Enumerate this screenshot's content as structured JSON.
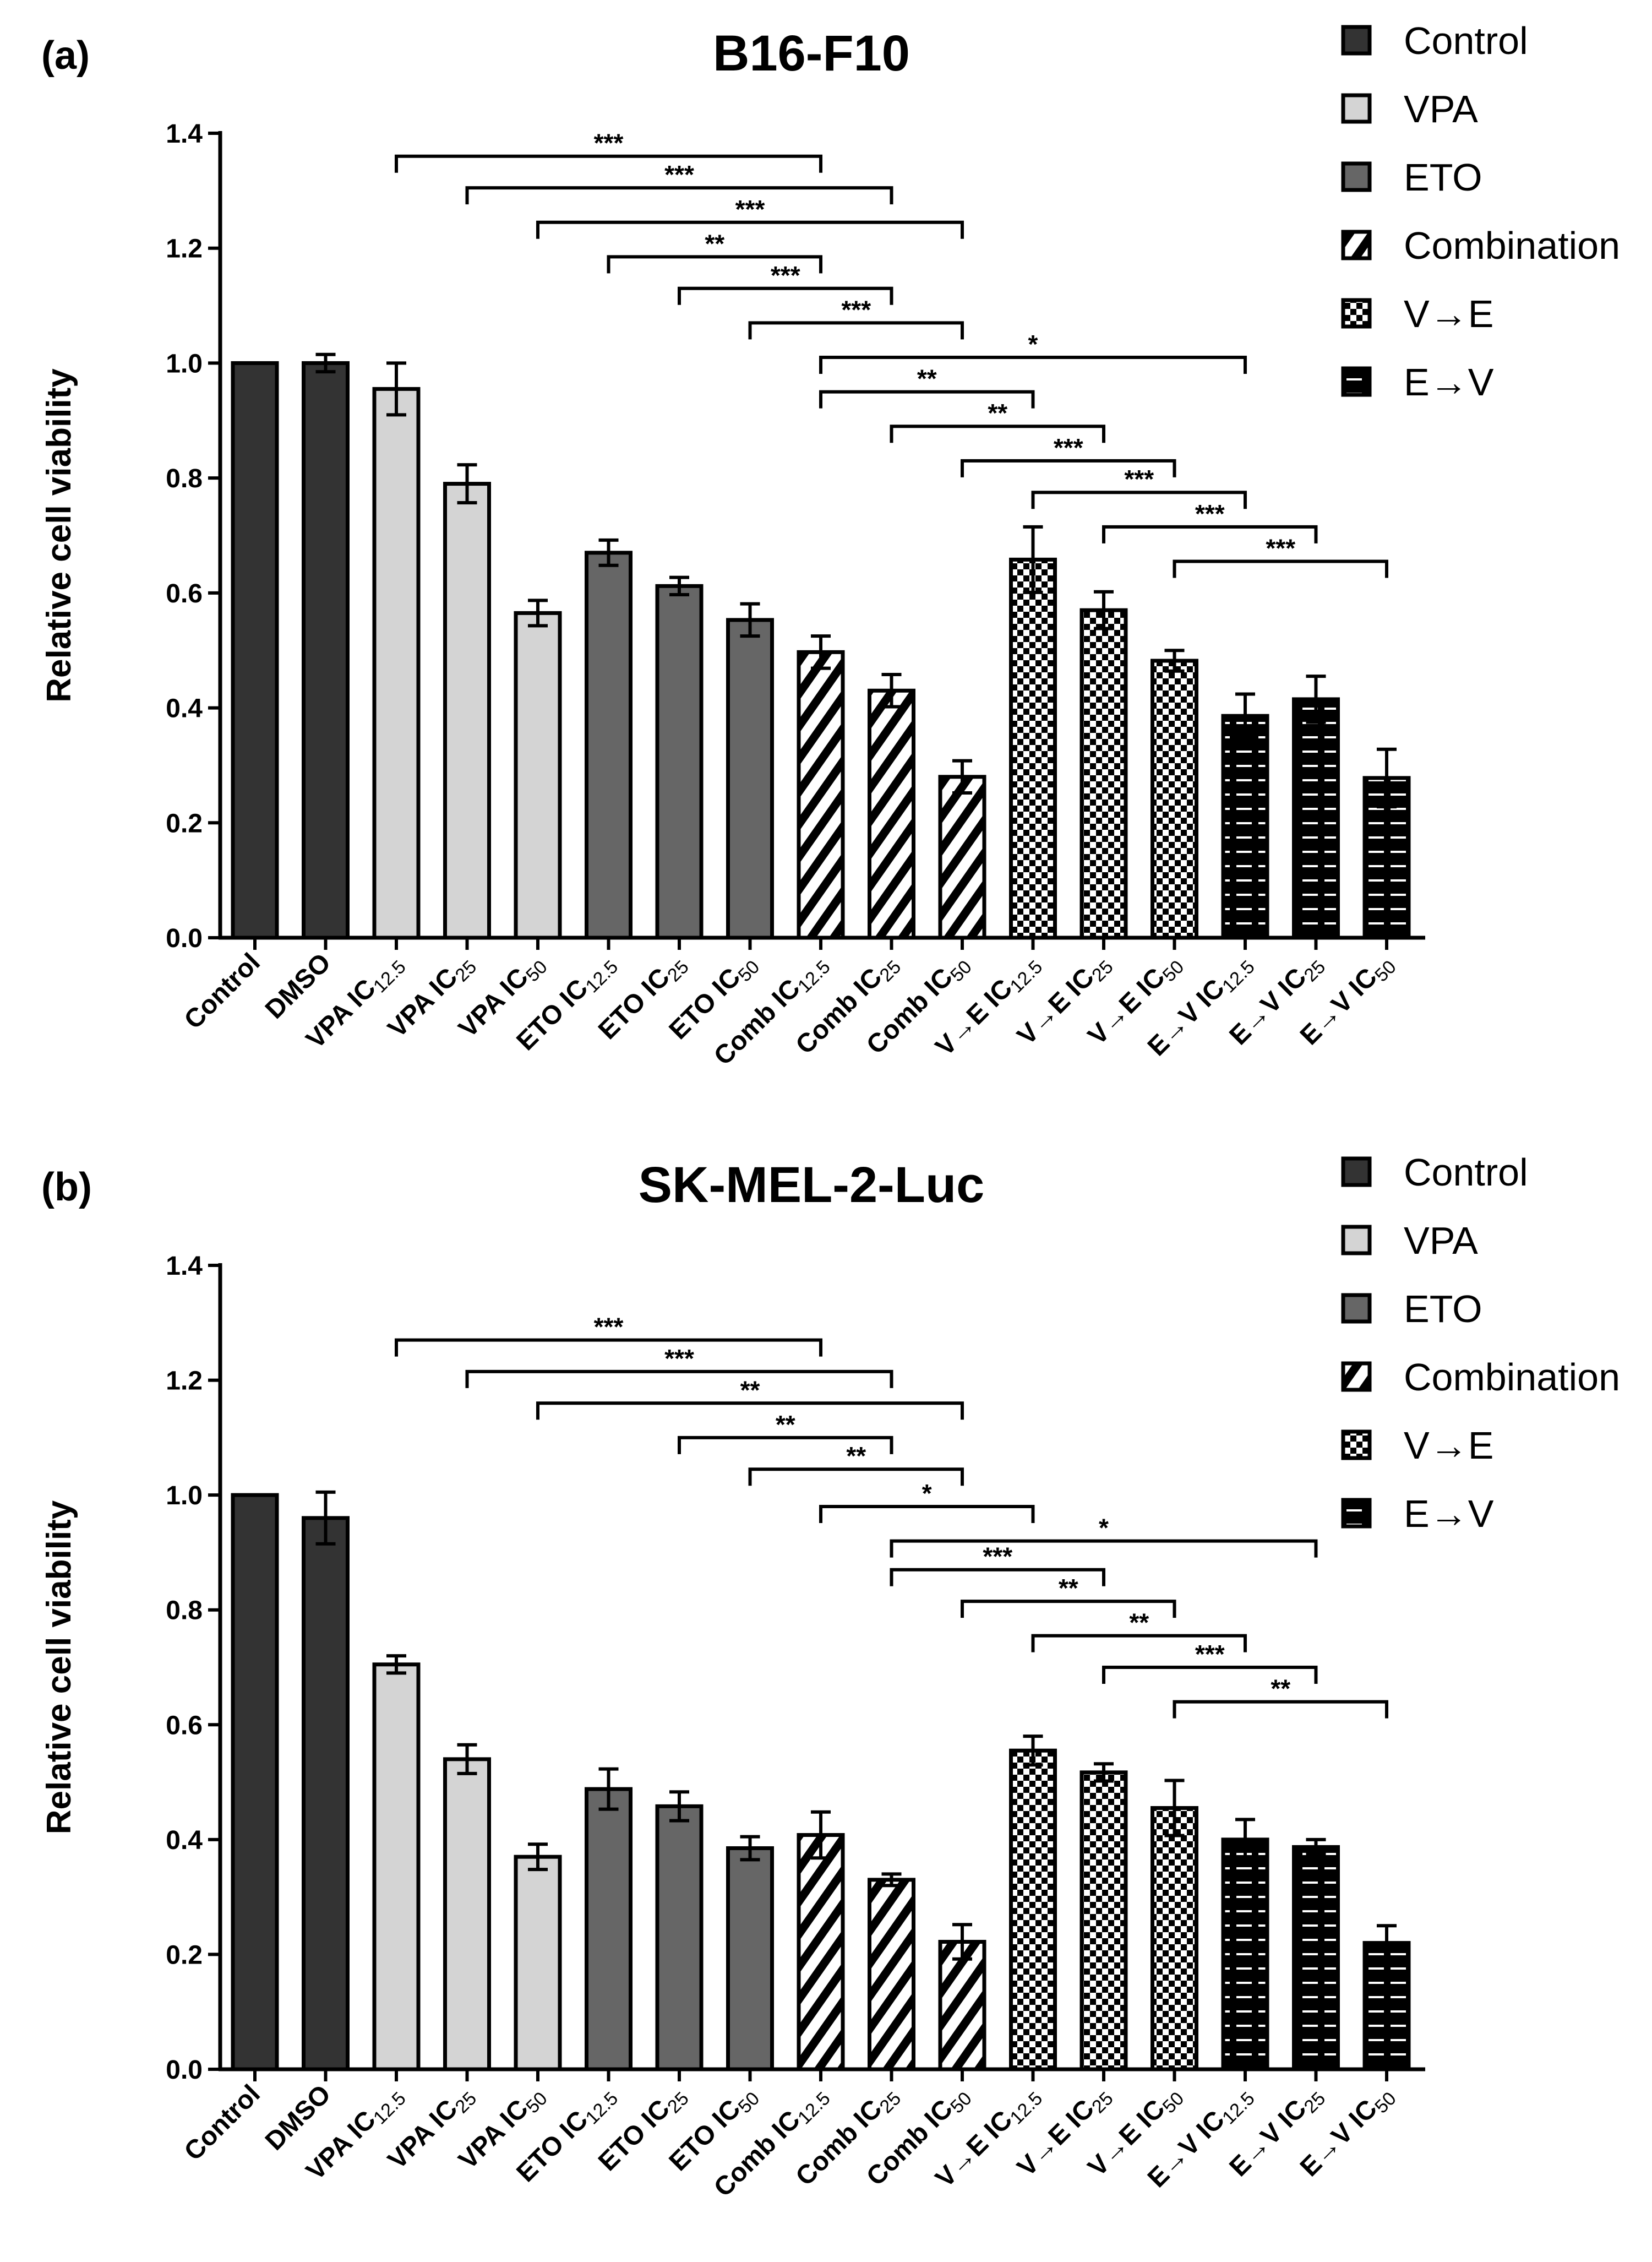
{
  "chart_data": [
    {
      "type": "bar",
      "panel_label": "(a)",
      "title": "B16-F10",
      "xlabel": "",
      "ylabel": "Relative cell viability",
      "ylim": [
        0,
        1.4
      ],
      "yticks": [
        "0.0",
        "0.2",
        "0.4",
        "0.6",
        "0.8",
        "1.0",
        "1.2",
        "1.4"
      ],
      "categories": [
        {
          "main": "Control",
          "sub": "",
          "group": 0
        },
        {
          "main": "DMSO",
          "sub": "",
          "group": 0
        },
        {
          "main": "VPA IC",
          "sub": "12.5",
          "group": 1
        },
        {
          "main": "VPA IC",
          "sub": "25",
          "group": 1
        },
        {
          "main": "VPA IC",
          "sub": "50",
          "group": 1
        },
        {
          "main": "ETO IC",
          "sub": "12.5",
          "group": 2
        },
        {
          "main": "ETO IC",
          "sub": "25",
          "group": 2
        },
        {
          "main": "ETO IC",
          "sub": "50",
          "group": 2
        },
        {
          "main": "Comb IC",
          "sub": "12.5",
          "group": 3
        },
        {
          "main": "Comb IC",
          "sub": "25",
          "group": 3
        },
        {
          "main": "Comb IC",
          "sub": "50",
          "group": 3
        },
        {
          "main": "V→E IC",
          "sub": "12.5",
          "group": 4
        },
        {
          "main": "V→E IC",
          "sub": "25",
          "group": 4
        },
        {
          "main": "V→E IC",
          "sub": "50",
          "group": 4
        },
        {
          "main": "E→V IC",
          "sub": "12.5",
          "group": 5
        },
        {
          "main": "E→V IC",
          "sub": "25",
          "group": 5
        },
        {
          "main": "E→V IC",
          "sub": "50",
          "group": 5
        }
      ],
      "values": [
        1.0,
        1.0,
        0.955,
        0.79,
        0.565,
        0.67,
        0.612,
        0.553,
        0.497,
        0.43,
        0.28,
        0.658,
        0.57,
        0.482,
        0.386,
        0.415,
        0.278
      ],
      "errors": [
        0,
        0.015,
        0.045,
        0.033,
        0.022,
        0.022,
        0.015,
        0.028,
        0.028,
        0.028,
        0.028,
        0.057,
        0.032,
        0.018,
        0.038,
        0.04,
        0.05
      ],
      "significance": [
        {
          "from": 2,
          "to": 8,
          "label": "***",
          "y": 1.36
        },
        {
          "from": 3,
          "to": 9,
          "label": "***",
          "y": 1.305
        },
        {
          "from": 4,
          "to": 10,
          "label": "***",
          "y": 1.245
        },
        {
          "from": 5,
          "to": 8,
          "label": "**",
          "y": 1.185
        },
        {
          "from": 6,
          "to": 9,
          "label": "***",
          "y": 1.13
        },
        {
          "from": 7,
          "to": 10,
          "label": "***",
          "y": 1.07
        },
        {
          "from": 8,
          "to": 14,
          "label": "*",
          "y": 1.01
        },
        {
          "from": 8,
          "to": 11,
          "label": "**",
          "y": 0.95
        },
        {
          "from": 9,
          "to": 12,
          "label": "**",
          "y": 0.89
        },
        {
          "from": 10,
          "to": 13,
          "label": "***",
          "y": 0.83
        },
        {
          "from": 11,
          "to": 14,
          "label": "***",
          "y": 0.775
        },
        {
          "from": 12,
          "to": 15,
          "label": "***",
          "y": 0.715
        },
        {
          "from": 13,
          "to": 16,
          "label": "***",
          "y": 0.655
        }
      ],
      "legend": [
        "Control",
        "VPA",
        "ETO",
        "Combination",
        "V→E",
        "E→V"
      ],
      "legend_position": "top-right",
      "grid": false
    },
    {
      "type": "bar",
      "panel_label": "(b)",
      "title": "SK-MEL-2-Luc",
      "xlabel": "",
      "ylabel": "Relative cell viability",
      "ylim": [
        0,
        1.4
      ],
      "yticks": [
        "0.0",
        "0.2",
        "0.4",
        "0.6",
        "0.8",
        "1.0",
        "1.2",
        "1.4"
      ],
      "categories": [
        {
          "main": "Control",
          "sub": "",
          "group": 0
        },
        {
          "main": "DMSO",
          "sub": "",
          "group": 0
        },
        {
          "main": "VPA IC",
          "sub": "12.5",
          "group": 1
        },
        {
          "main": "VPA IC",
          "sub": "25",
          "group": 1
        },
        {
          "main": "VPA IC",
          "sub": "50",
          "group": 1
        },
        {
          "main": "ETO IC",
          "sub": "12.5",
          "group": 2
        },
        {
          "main": "ETO IC",
          "sub": "25",
          "group": 2
        },
        {
          "main": "ETO IC",
          "sub": "50",
          "group": 2
        },
        {
          "main": "Comb IC",
          "sub": "12.5",
          "group": 3
        },
        {
          "main": "Comb IC",
          "sub": "25",
          "group": 3
        },
        {
          "main": "Comb IC",
          "sub": "50",
          "group": 3
        },
        {
          "main": "V→E IC",
          "sub": "12.5",
          "group": 4
        },
        {
          "main": "V→E IC",
          "sub": "25",
          "group": 4
        },
        {
          "main": "V→E IC",
          "sub": "50",
          "group": 4
        },
        {
          "main": "E→V IC",
          "sub": "12.5",
          "group": 5
        },
        {
          "main": "E→V IC",
          "sub": "25",
          "group": 5
        },
        {
          "main": "E→V IC",
          "sub": "50",
          "group": 5
        }
      ],
      "values": [
        1.0,
        0.96,
        0.705,
        0.54,
        0.37,
        0.488,
        0.458,
        0.385,
        0.408,
        0.33,
        0.222,
        0.555,
        0.517,
        0.455,
        0.4,
        0.387,
        0.22
      ],
      "errors": [
        0,
        0.045,
        0.015,
        0.025,
        0.022,
        0.035,
        0.025,
        0.02,
        0.04,
        0.01,
        0.03,
        0.025,
        0.015,
        0.048,
        0.035,
        0.013,
        0.03
      ],
      "significance": [
        {
          "from": 2,
          "to": 8,
          "label": "***",
          "y": 1.27
        },
        {
          "from": 3,
          "to": 9,
          "label": "***",
          "y": 1.215
        },
        {
          "from": 4,
          "to": 10,
          "label": "**",
          "y": 1.16
        },
        {
          "from": 6,
          "to": 9,
          "label": "**",
          "y": 1.1
        },
        {
          "from": 7,
          "to": 10,
          "label": "**",
          "y": 1.045
        },
        {
          "from": 8,
          "to": 11,
          "label": "*",
          "y": 0.98
        },
        {
          "from": 9,
          "to": 15,
          "label": "*",
          "y": 0.92
        },
        {
          "from": 9,
          "to": 12,
          "label": "***",
          "y": 0.87
        },
        {
          "from": 10,
          "to": 13,
          "label": "**",
          "y": 0.815
        },
        {
          "from": 11,
          "to": 14,
          "label": "**",
          "y": 0.755
        },
        {
          "from": 12,
          "to": 15,
          "label": "***",
          "y": 0.7
        },
        {
          "from": 13,
          "to": 16,
          "label": "**",
          "y": 0.64
        }
      ],
      "legend": [
        "Control",
        "VPA",
        "ETO",
        "Combination",
        "V→E",
        "E→V"
      ],
      "legend_position": "top-right",
      "grid": false
    }
  ],
  "colors": {
    "control": "#333333",
    "vpa": "#d4d4d4",
    "eto": "#666666",
    "stroke": "#000000"
  }
}
